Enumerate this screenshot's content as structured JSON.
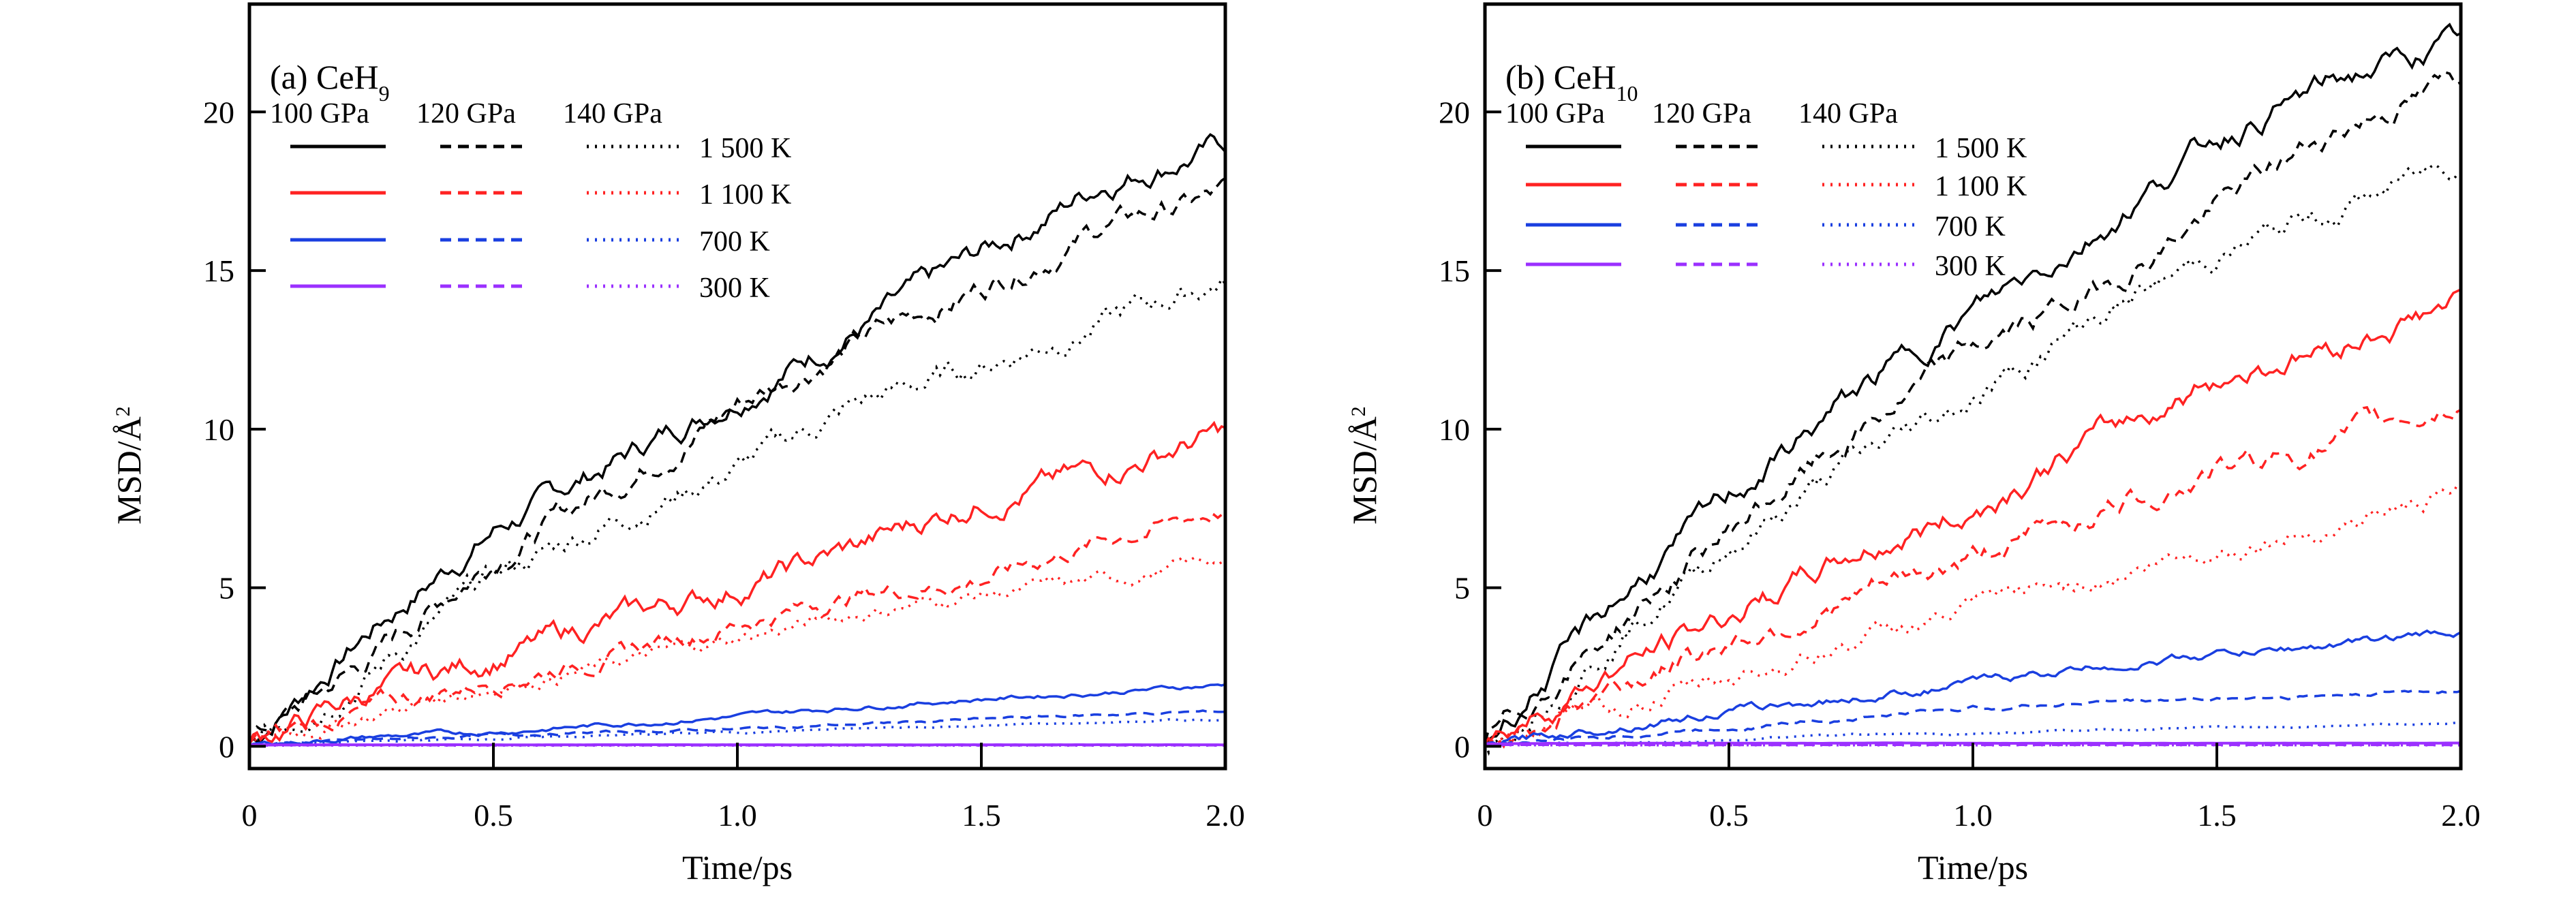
{
  "chart_data": [
    {
      "type": "line",
      "panel_label": "(a) CeH",
      "panel_label_sub": "9",
      "xlabel": "Time/ps",
      "ylabel": "MSD/Å",
      "ylabel_sup": "2",
      "xlim": [
        0,
        2.0
      ],
      "ylim": [
        -0.7,
        23.4
      ],
      "xticks": [
        "0",
        "0.5",
        "1.0",
        "1.5",
        "2.0"
      ],
      "xtick_values": [
        0,
        0.5,
        1.0,
        1.5,
        2.0
      ],
      "yticks": [
        "0",
        "5",
        "10",
        "15",
        "20"
      ],
      "ytick_values": [
        0,
        5,
        10,
        15,
        20
      ],
      "grid": false,
      "legend_placement": "top-left",
      "legend_pressures": [
        "100 GPa",
        "120 GPa",
        "140 GPa"
      ],
      "legend_temperatures": [
        "1 500 K",
        "1 100 K",
        "700 K",
        "300 K"
      ],
      "pressure_line_styles": {
        "100 GPa": "solid",
        "120 GPa": "dashed",
        "140 GPa": "dotted"
      },
      "temperature_colors": {
        "1 500 K": "#000000",
        "1 100 K": "#ff2222",
        "700 K": "#1a3fe0",
        "300 K": "#9b30ff"
      },
      "x": [
        0,
        0.25,
        0.5,
        0.75,
        1.0,
        1.25,
        1.5,
        1.75,
        2.0
      ],
      "series": [
        {
          "pressure": "100 GPa",
          "temperature": "1 500 K",
          "values": [
            0.1,
            3.7,
            6.8,
            9.0,
            11.1,
            13.2,
            15.5,
            17.8,
            19.0
          ]
        },
        {
          "pressure": "120 GPa",
          "temperature": "1 500 K",
          "values": [
            0.1,
            2.8,
            6.0,
            8.3,
            10.8,
            12.8,
            14.5,
            16.4,
            17.4
          ]
        },
        {
          "pressure": "140 GPa",
          "temperature": "1 500 K",
          "values": [
            0.1,
            2.4,
            5.3,
            7.2,
            8.8,
            10.8,
            12.0,
            13.4,
            14.7
          ]
        },
        {
          "pressure": "100 GPa",
          "temperature": "1 100 K",
          "values": [
            0.1,
            1.7,
            2.8,
            4.0,
            5.0,
            6.3,
            7.8,
            8.7,
            9.9
          ]
        },
        {
          "pressure": "120 GPa",
          "temperature": "1 100 K",
          "values": [
            0.1,
            1.2,
            2.1,
            2.9,
            3.9,
            4.8,
            5.3,
            6.5,
            7.5
          ]
        },
        {
          "pressure": "140 GPa",
          "temperature": "1 100 K",
          "values": [
            0.1,
            1.0,
            1.9,
            2.6,
            3.4,
            4.2,
            4.8,
            5.2,
            5.9
          ]
        },
        {
          "pressure": "100 GPa",
          "temperature": "700 K",
          "values": [
            0.05,
            0.3,
            0.45,
            0.7,
            0.95,
            1.25,
            1.5,
            1.7,
            1.95
          ]
        },
        {
          "pressure": "120 GPa",
          "temperature": "700 K",
          "values": [
            0.05,
            0.2,
            0.35,
            0.45,
            0.55,
            0.7,
            0.85,
            1.0,
            1.1
          ]
        },
        {
          "pressure": "140 GPa",
          "temperature": "700 K",
          "values": [
            0.05,
            0.15,
            0.25,
            0.35,
            0.45,
            0.55,
            0.65,
            0.75,
            0.85
          ]
        },
        {
          "pressure": "100 GPa",
          "temperature": "300 K",
          "values": [
            0.05,
            0.05,
            0.05,
            0.05,
            0.05,
            0.05,
            0.05,
            0.05,
            0.05
          ]
        },
        {
          "pressure": "120 GPa",
          "temperature": "300 K",
          "values": [
            0.04,
            0.04,
            0.04,
            0.04,
            0.04,
            0.04,
            0.04,
            0.04,
            0.04
          ]
        },
        {
          "pressure": "140 GPa",
          "temperature": "300 K",
          "values": [
            0.03,
            0.03,
            0.03,
            0.03,
            0.03,
            0.03,
            0.03,
            0.03,
            0.03
          ]
        }
      ]
    },
    {
      "type": "line",
      "panel_label": "(b) CeH",
      "panel_label_sub": "10",
      "xlabel": "Time/ps",
      "ylabel": "MSD/Å",
      "ylabel_sup": "2",
      "xlim": [
        0,
        2.0
      ],
      "ylim": [
        -0.7,
        23.4
      ],
      "xticks": [
        "0",
        "0.5",
        "1.0",
        "1.5",
        "2.0"
      ],
      "xtick_values": [
        0,
        0.5,
        1.0,
        1.5,
        2.0
      ],
      "yticks": [
        "0",
        "5",
        "10",
        "15",
        "20"
      ],
      "ytick_values": [
        0,
        5,
        10,
        15,
        20
      ],
      "grid": false,
      "legend_placement": "top-left",
      "legend_pressures": [
        "100 GPa",
        "120 GPa",
        "140 GPa"
      ],
      "legend_temperatures": [
        "1 500 K",
        "1 100 K",
        "700 K",
        "300 K"
      ],
      "pressure_line_styles": {
        "100 GPa": "solid",
        "120 GPa": "dashed",
        "140 GPa": "dotted"
      },
      "temperature_colors": {
        "1 500 K": "#000000",
        "1 100 K": "#ff2222",
        "700 K": "#1a3fe0",
        "300 K": "#9b30ff"
      },
      "x": [
        0,
        0.25,
        0.5,
        0.75,
        1.0,
        1.25,
        1.5,
        1.75,
        2.0
      ],
      "series": [
        {
          "pressure": "100 GPa",
          "temperature": "1 500 K",
          "values": [
            0.1,
            4.3,
            7.8,
            11.0,
            13.7,
            16.2,
            19.2,
            21.0,
            22.2
          ]
        },
        {
          "pressure": "120 GPa",
          "temperature": "1 500 K",
          "values": [
            0.1,
            3.5,
            6.8,
            9.7,
            12.5,
            14.3,
            17.0,
            19.5,
            21.0
          ]
        },
        {
          "pressure": "140 GPa",
          "temperature": "1 500 K",
          "values": [
            0.1,
            3.2,
            6.3,
            8.9,
            11.0,
            13.5,
            15.5,
            16.9,
            18.5
          ]
        },
        {
          "pressure": "100 GPa",
          "temperature": "1 100 K",
          "values": [
            0.1,
            2.3,
            4.1,
            6.0,
            7.4,
            9.7,
            11.6,
            12.7,
            14.0
          ]
        },
        {
          "pressure": "120 GPa",
          "temperature": "1 100 K",
          "values": [
            0.1,
            1.8,
            3.3,
            4.6,
            5.9,
            7.4,
            8.7,
            9.6,
            10.9
          ]
        },
        {
          "pressure": "140 GPa",
          "temperature": "1 100 K",
          "values": [
            0.1,
            1.1,
            2.1,
            3.3,
            4.3,
            5.3,
            6.2,
            7.0,
            8.0
          ]
        },
        {
          "pressure": "100 GPa",
          "temperature": "700 K",
          "values": [
            0.05,
            0.6,
            1.1,
            1.5,
            2.0,
            2.5,
            2.9,
            3.2,
            3.6
          ]
        },
        {
          "pressure": "120 GPa",
          "temperature": "700 K",
          "values": [
            0.05,
            0.3,
            0.6,
            0.9,
            1.2,
            1.4,
            1.5,
            1.6,
            1.8
          ]
        },
        {
          "pressure": "140 GPa",
          "temperature": "700 K",
          "values": [
            0.05,
            0.1,
            0.2,
            0.35,
            0.4,
            0.5,
            0.6,
            0.65,
            0.75
          ]
        },
        {
          "pressure": "100 GPa",
          "temperature": "300 K",
          "values": [
            0.08,
            0.1,
            0.1,
            0.1,
            0.1,
            0.1,
            0.1,
            0.1,
            0.1
          ]
        },
        {
          "pressure": "120 GPa",
          "temperature": "300 K",
          "values": [
            0.05,
            0.05,
            0.05,
            0.05,
            0.05,
            0.05,
            0.05,
            0.05,
            0.05
          ]
        },
        {
          "pressure": "140 GPa",
          "temperature": "300 K",
          "values": [
            0.04,
            0.04,
            0.04,
            0.04,
            0.04,
            0.04,
            0.04,
            0.04,
            0.04
          ]
        }
      ]
    }
  ]
}
